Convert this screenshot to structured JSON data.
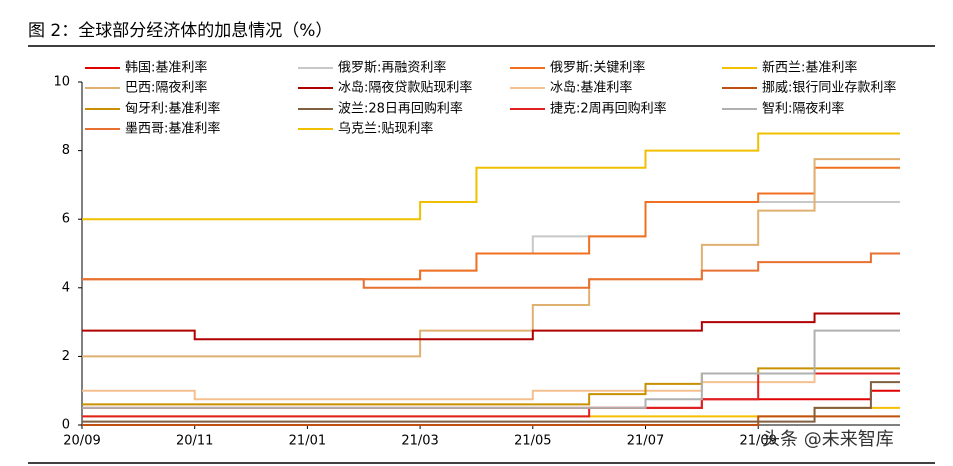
{
  "chart_data": {
    "type": "line",
    "step": true,
    "title": "图 2：全球部分经济体的加息情况（%）",
    "watermark": "头条 @未来智库",
    "categories": [
      "20/09",
      null,
      "20/11",
      null,
      "21/01",
      null,
      "21/03",
      null,
      "21/05",
      null,
      "21/07",
      null,
      "21/09",
      null,
      null
    ],
    "ylim": [
      0,
      10
    ],
    "yticks": [
      0,
      2,
      4,
      6,
      8,
      10
    ],
    "series": [
      {
        "name": "韩国:基准利率",
        "color": "#e00000",
        "values": [
          0.5,
          0.5,
          0.5,
          0.5,
          0.5,
          0.5,
          0.5,
          0.5,
          0.5,
          0.5,
          0.5,
          0.75,
          0.75,
          0.75,
          1.0
        ]
      },
      {
        "name": "俄罗斯:再融资利率",
        "color": "#c8c8c8",
        "values": [
          4.25,
          4.25,
          4.25,
          4.25,
          4.25,
          4.25,
          4.5,
          5.0,
          5.5,
          5.5,
          6.5,
          6.5,
          6.5,
          6.5,
          6.5
        ]
      },
      {
        "name": "俄罗斯:关键利率",
        "color": "#f07020",
        "values": [
          4.25,
          4.25,
          4.25,
          4.25,
          4.25,
          4.25,
          4.5,
          5.0,
          5.0,
          5.5,
          6.5,
          6.5,
          6.75,
          7.5,
          7.5
        ]
      },
      {
        "name": "新西兰:基准利率",
        "color": "#f5c000",
        "values": [
          0.25,
          0.25,
          0.25,
          0.25,
          0.25,
          0.25,
          0.25,
          0.25,
          0.25,
          0.25,
          0.25,
          0.25,
          0.25,
          0.5,
          0.5
        ]
      },
      {
        "name": "巴西:隔夜利率",
        "color": "#e0b070",
        "values": [
          2,
          2,
          2,
          2,
          2,
          2,
          2.75,
          2.75,
          3.5,
          4.25,
          4.25,
          5.25,
          6.25,
          7.75,
          7.75
        ]
      },
      {
        "name": "冰岛:隔夜贷款贴现利率",
        "color": "#b00000",
        "values": [
          2.75,
          2.75,
          2.5,
          2.5,
          2.5,
          2.5,
          2.5,
          2.5,
          2.75,
          2.75,
          2.75,
          3.0,
          3.0,
          3.25,
          3.25
        ]
      },
      {
        "name": "冰岛:基准利率",
        "color": "#f5c090",
        "values": [
          1,
          1,
          0.75,
          0.75,
          0.75,
          0.75,
          0.75,
          0.75,
          1,
          1,
          1,
          1.25,
          1.25,
          1.5,
          1.5
        ]
      },
      {
        "name": "挪威:银行同业存款利率",
        "color": "#c05010",
        "values": [
          0,
          0,
          0,
          0,
          0,
          0,
          0,
          0,
          0,
          0,
          0,
          0,
          0.25,
          0.25,
          0.25
        ]
      },
      {
        "name": "匈牙利:基准利率",
        "color": "#c89000",
        "values": [
          0.6,
          0.6,
          0.6,
          0.6,
          0.6,
          0.6,
          0.6,
          0.6,
          0.6,
          0.9,
          1.2,
          1.5,
          1.65,
          1.65,
          1.65
        ]
      },
      {
        "name": "波兰:28日再回购利率",
        "color": "#806040",
        "values": [
          0.1,
          0.1,
          0.1,
          0.1,
          0.1,
          0.1,
          0.1,
          0.1,
          0.1,
          0.1,
          0.1,
          0.1,
          0.1,
          0.5,
          1.25
        ]
      },
      {
        "name": "捷克:2周再回购利率",
        "color": "#e02020",
        "values": [
          0.25,
          0.25,
          0.25,
          0.25,
          0.25,
          0.25,
          0.25,
          0.25,
          0.25,
          0.5,
          0.5,
          0.75,
          1.5,
          1.5,
          1.5
        ]
      },
      {
        "name": "智利:隔夜利率",
        "color": "#b0b0b0",
        "values": [
          0.5,
          0.5,
          0.5,
          0.5,
          0.5,
          0.5,
          0.5,
          0.5,
          0.5,
          0.5,
          0.75,
          1.5,
          1.5,
          2.75,
          2.75
        ]
      },
      {
        "name": "墨西哥:基准利率",
        "color": "#e87030",
        "values": [
          4.25,
          4.25,
          4.25,
          4.25,
          4.25,
          4.0,
          4.0,
          4.0,
          4.0,
          4.25,
          4.25,
          4.5,
          4.75,
          4.75,
          5.0
        ]
      },
      {
        "name": "乌克兰:贴现利率",
        "color": "#f0c000",
        "values": [
          6,
          6,
          6,
          6,
          6,
          6,
          6.5,
          7.5,
          7.5,
          7.5,
          8,
          8,
          8.5,
          8.5,
          8.5
        ]
      }
    ]
  }
}
